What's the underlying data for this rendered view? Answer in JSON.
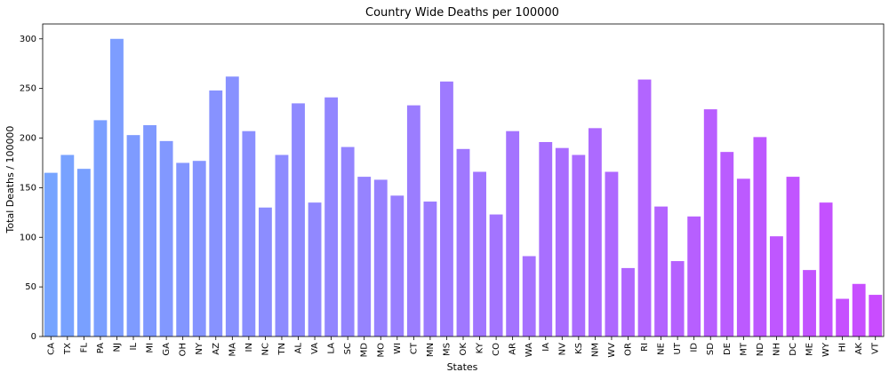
{
  "chart_data": {
    "type": "bar",
    "title": "Country Wide Deaths per 100000",
    "xlabel": "States",
    "ylabel": "Total Deaths / 100000",
    "ylim": [
      0,
      315
    ],
    "yticks": [
      0,
      50,
      100,
      150,
      200,
      250,
      300
    ],
    "grid": false,
    "categories": [
      "CA",
      "TX",
      "FL",
      "PA",
      "NJ",
      "IL",
      "MI",
      "GA",
      "OH",
      "NY",
      "AZ",
      "MA",
      "IN",
      "NC",
      "TN",
      "AL",
      "VA",
      "LA",
      "SC",
      "MD",
      "MO",
      "WI",
      "CT",
      "MN",
      "MS",
      "OK",
      "KY",
      "CO",
      "AR",
      "WA",
      "IA",
      "NV",
      "KS",
      "NM",
      "WV",
      "OR",
      "RI",
      "NE",
      "UT",
      "ID",
      "SD",
      "DE",
      "MT",
      "ND",
      "NH",
      "DC",
      "ME",
      "WY",
      "HI",
      "AK",
      "VT"
    ],
    "values": [
      165,
      183,
      169,
      218,
      300,
      203,
      213,
      197,
      175,
      177,
      248,
      262,
      207,
      130,
      183,
      235,
      135,
      241,
      191,
      161,
      158,
      142,
      233,
      136,
      257,
      189,
      166,
      123,
      207,
      81,
      196,
      190,
      183,
      210,
      166,
      69,
      259,
      131,
      76,
      121,
      229,
      186,
      159,
      201,
      101,
      161,
      67,
      135,
      38,
      53,
      42
    ],
    "colors": {
      "start": "#76a4ff",
      "end": "#c94cff",
      "axis": "#000000"
    }
  }
}
